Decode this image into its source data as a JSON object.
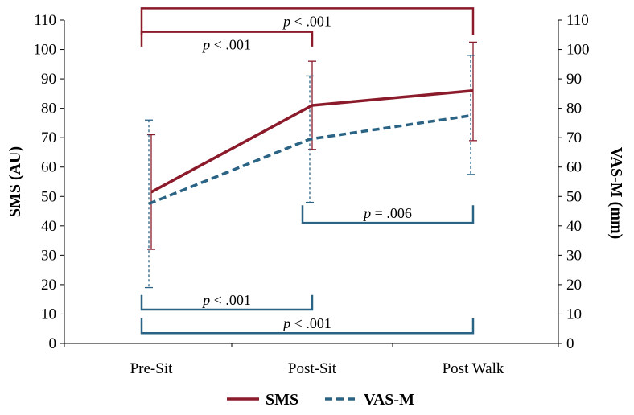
{
  "chart_data": {
    "type": "line",
    "categories": [
      "Pre-Sit",
      "Post-Sit",
      "Post Walk"
    ],
    "ylabel": "SMS (AU)",
    "y2label": "VAS-M (mm)",
    "ylim": [
      0,
      110
    ],
    "y2lim": [
      0,
      110
    ],
    "yticks": [
      0,
      10,
      20,
      30,
      40,
      50,
      60,
      70,
      80,
      90,
      100,
      110
    ],
    "grid": false,
    "legend_position": "bottom-center",
    "series": [
      {
        "name": "SMS",
        "axis": "left",
        "color": "#8B1A2B",
        "dash": "solid",
        "values": [
          51.5,
          81,
          86
        ],
        "err_upper": [
          71,
          96,
          102.5
        ],
        "err_lower": [
          32,
          66,
          69
        ]
      },
      {
        "name": "VAS-M",
        "axis": "right",
        "color": "#2A6384",
        "dash": "dashed",
        "values": [
          47.5,
          69.5,
          77.5
        ],
        "err_upper": [
          76,
          91,
          98
        ],
        "err_lower": [
          19,
          48,
          57.5
        ]
      }
    ],
    "annotations": [
      {
        "series": "SMS",
        "text": "p < .001",
        "from": "Pre-Sit",
        "to": "Post Walk",
        "orientation": "top",
        "level": 114,
        "arm": 105
      },
      {
        "series": "SMS",
        "text": "p < .001",
        "from": "Pre-Sit",
        "to": "Post-Sit",
        "orientation": "top",
        "level": 106,
        "arm": 101
      },
      {
        "series": "VAS-M",
        "text": "p = .006",
        "from": "Post-Sit",
        "to": "Post Walk",
        "orientation": "bottom",
        "level": 41,
        "arm": 47
      },
      {
        "series": "VAS-M",
        "text": "p < .001",
        "from": "Pre-Sit",
        "to": "Post-Sit",
        "orientation": "bottom",
        "level": 11.5,
        "arm": 16.5
      },
      {
        "series": "VAS-M",
        "text": "p < .001",
        "from": "Pre-Sit",
        "to": "Post Walk",
        "orientation": "bottom",
        "level": 3.5,
        "arm": 8.5
      }
    ]
  }
}
